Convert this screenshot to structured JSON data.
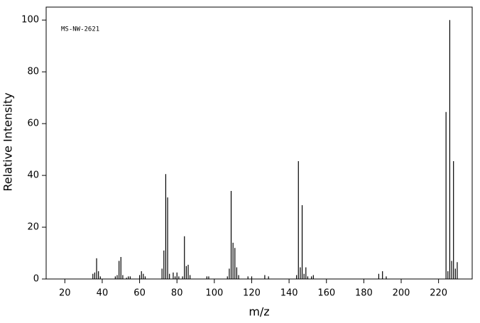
{
  "chart_data": {
    "type": "bar",
    "annotation": "MS-NW-2621",
    "x_label": "m/z",
    "y_label": "Relative Intensity",
    "x": [
      35,
      36,
      37,
      38,
      39,
      47,
      48,
      49,
      50,
      51,
      53,
      54,
      55,
      60,
      61,
      62,
      63,
      72,
      73,
      74,
      75,
      76,
      78,
      79,
      80,
      81,
      83,
      84,
      85,
      86,
      87,
      96,
      97,
      107,
      108,
      109,
      110,
      111,
      112,
      113,
      118,
      120,
      127,
      129,
      144,
      145,
      146,
      147,
      148,
      149,
      150,
      152,
      153,
      188,
      190,
      192,
      224,
      225,
      226,
      227,
      228,
      229,
      230
    ],
    "values": [
      2,
      2.5,
      8,
      3,
      1,
      1,
      1.5,
      7,
      8.5,
      1.5,
      0.5,
      1,
      1,
      1.5,
      3,
      2,
      1,
      4,
      11,
      40.5,
      31.5,
      2,
      2.5,
      1,
      2.5,
      1,
      1,
      16.5,
      5,
      5.5,
      1.5,
      1,
      1,
      1,
      4,
      34,
      14,
      12,
      4.5,
      1.5,
      1,
      1,
      1.5,
      1,
      1.5,
      45.5,
      4.5,
      28.5,
      2,
      4.5,
      1,
      1,
      1.5,
      2,
      3,
      1,
      64.5,
      3,
      100,
      7,
      45.5,
      4,
      6.5
    ],
    "color": "#000000",
    "xlim": [
      10,
      238
    ],
    "ylim": [
      0,
      105
    ],
    "xticks": [
      20,
      40,
      60,
      80,
      100,
      120,
      140,
      160,
      180,
      200,
      220
    ],
    "yticks": [
      0,
      20,
      40,
      60,
      80,
      100
    ]
  }
}
